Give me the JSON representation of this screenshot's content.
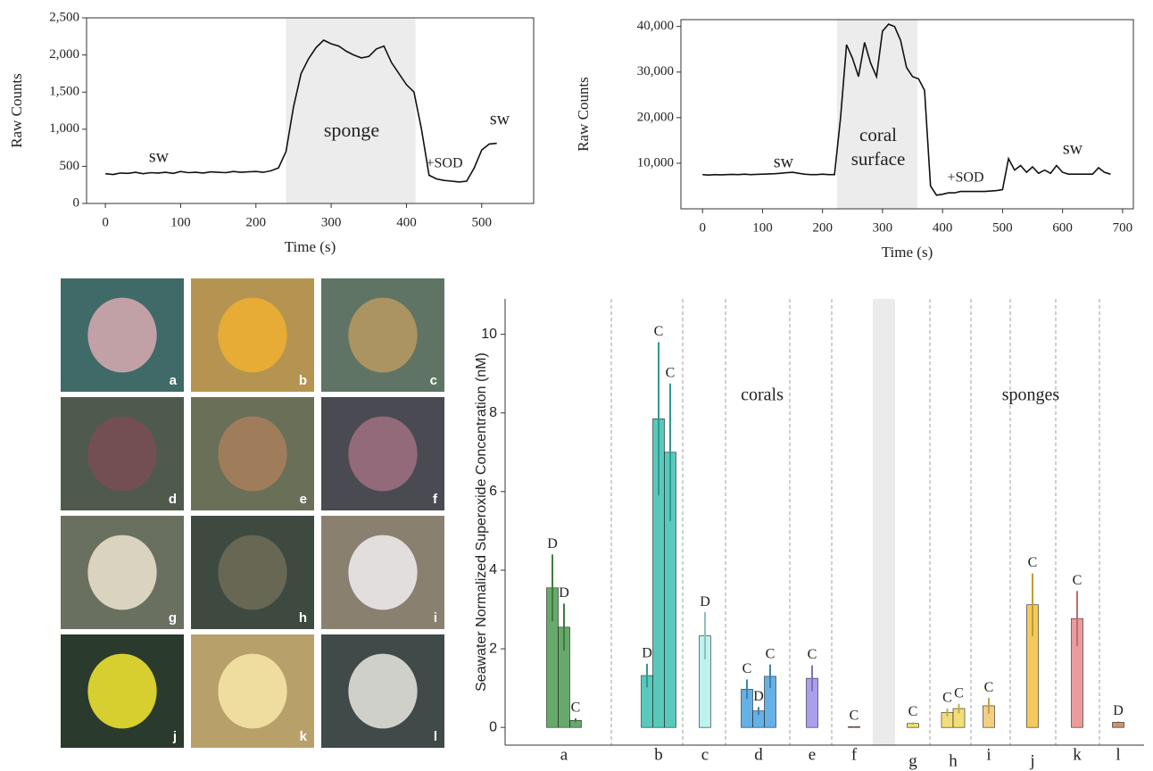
{
  "chart_data": [
    {
      "type": "line",
      "ylabel": "Raw Counts",
      "xlabel": "Time (s)",
      "color": "#111111",
      "shade_color": "#ececec",
      "xlim": [
        -25,
        569
      ],
      "xticks": [
        0,
        100,
        200,
        300,
        400,
        500
      ],
      "ylim": [
        0,
        2500
      ],
      "yticks": [
        0,
        500,
        {
          "value": 1000,
          "label": "1,000"
        },
        {
          "value": 1500,
          "label": "1,500"
        },
        {
          "value": 2000,
          "label": "2,000"
        },
        {
          "value": 2500,
          "label": "2,500"
        }
      ],
      "shaded": [
        240,
        412
      ],
      "annotations": [
        "sw",
        "sponge",
        "+SOD",
        "sw"
      ],
      "x": [
        0,
        10,
        20,
        30,
        40,
        50,
        60,
        70,
        80,
        90,
        100,
        110,
        120,
        130,
        140,
        150,
        160,
        170,
        180,
        190,
        200,
        210,
        220,
        230,
        240,
        250,
        260,
        270,
        280,
        290,
        300,
        310,
        320,
        330,
        340,
        350,
        360,
        370,
        380,
        390,
        400,
        410,
        420,
        430,
        440,
        450,
        460,
        470,
        480,
        490,
        500,
        510,
        520
      ],
      "values": [
        400,
        390,
        410,
        405,
        420,
        400,
        415,
        410,
        420,
        405,
        430,
        415,
        420,
        410,
        425,
        420,
        415,
        430,
        420,
        425,
        430,
        420,
        440,
        480,
        700,
        1300,
        1750,
        1950,
        2100,
        2200,
        2150,
        2120,
        2050,
        2000,
        1960,
        1980,
        2080,
        2120,
        1900,
        1750,
        1600,
        1500,
        1000,
        380,
        330,
        310,
        300,
        290,
        300,
        480,
        720,
        800,
        810
      ]
    },
    {
      "type": "line",
      "ylabel": "Raw Counts",
      "xlabel": "Time (s)",
      "color": "#111111",
      "shade_color": "#ececec",
      "xlim": [
        -36,
        718
      ],
      "xticks": [
        0,
        100,
        200,
        300,
        400,
        500,
        600,
        700
      ],
      "ylim": [
        0,
        41500
      ],
      "yticks": [
        {
          "value": 10000,
          "label": "10,000"
        },
        {
          "value": 20000,
          "label": "20,000"
        },
        {
          "value": 30000,
          "label": "30,000"
        },
        {
          "value": 40000,
          "label": "40,000"
        }
      ],
      "shaded": [
        224,
        358
      ],
      "annotations": [
        "sw",
        "coral",
        "surface",
        "+SOD",
        "sw"
      ],
      "x": [
        0,
        10,
        20,
        30,
        40,
        50,
        60,
        70,
        80,
        90,
        100,
        110,
        120,
        130,
        140,
        150,
        160,
        170,
        180,
        190,
        200,
        210,
        220,
        230,
        240,
        250,
        260,
        270,
        280,
        290,
        300,
        310,
        320,
        330,
        340,
        350,
        360,
        370,
        380,
        390,
        400,
        410,
        420,
        430,
        440,
        450,
        460,
        470,
        480,
        490,
        500,
        510,
        520,
        530,
        540,
        550,
        560,
        570,
        580,
        590,
        600,
        610,
        620,
        630,
        640,
        650,
        660,
        670,
        680
      ],
      "values": [
        7500,
        7400,
        7500,
        7450,
        7500,
        7550,
        7500,
        7600,
        7500,
        7550,
        7600,
        7650,
        7700,
        7800,
        7900,
        8000,
        7800,
        7600,
        7500,
        7500,
        7600,
        7500,
        7500,
        20000,
        36000,
        33000,
        29000,
        36500,
        32000,
        29000,
        39000,
        40500,
        40000,
        37000,
        31000,
        29000,
        28500,
        26000,
        5000,
        3000,
        3200,
        3500,
        3500,
        3800,
        3800,
        3800,
        3800,
        3800,
        3900,
        4000,
        4200,
        11000,
        8500,
        9500,
        8000,
        9200,
        7800,
        8500,
        7800,
        9500,
        8000,
        7600,
        7600,
        7600,
        7600,
        7600,
        9000,
        8000,
        7600
      ]
    },
    {
      "type": "bar",
      "ylabel": "Seawater Normalized Superoxide Concentration (nM)",
      "ylim": [
        -0.45,
        10.9
      ],
      "yticks": [
        0,
        2,
        4,
        6,
        8,
        10
      ],
      "annotations": [
        "corals",
        "sponges"
      ],
      "groups": [
        {
          "label": "a",
          "color": "#4c9a50",
          "values": [
            3.55,
            2.55,
            0.18
          ],
          "errors": [
            0.85,
            0.6,
            0.05
          ],
          "letters": [
            "D",
            "D",
            "C"
          ]
        },
        {
          "label": "b",
          "color": "#3cbfb0",
          "values": [
            1.32,
            7.85,
            7.0
          ],
          "errors": [
            0.3,
            1.95,
            1.75
          ],
          "letters": [
            "D",
            "C",
            "C"
          ]
        },
        {
          "label": "c",
          "color": "#b2f0ec",
          "values": [
            2.33
          ],
          "errors": [
            0.6
          ],
          "letters": [
            "D"
          ]
        },
        {
          "label": "d",
          "color": "#4aa3e0",
          "values": [
            0.97,
            0.42,
            1.3
          ],
          "errors": [
            0.25,
            0.1,
            0.3
          ],
          "letters": [
            "C",
            "D",
            "C"
          ]
        },
        {
          "label": "e",
          "color": "#9a8ee8",
          "values": [
            1.25
          ],
          "errors": [
            0.33
          ],
          "letters": [
            "C"
          ]
        },
        {
          "label": "f",
          "color": "#c08060",
          "values": [
            0.02
          ],
          "errors": [
            0.01
          ],
          "letters": [
            "C"
          ]
        },
        {
          "label": "g",
          "color": "#e8dc60",
          "values": [
            0.1
          ],
          "errors": [
            0.03
          ],
          "letters": [
            "C"
          ]
        },
        {
          "label": "h",
          "color": "#f0d860",
          "values": [
            0.38,
            0.48
          ],
          "errors": [
            0.1,
            0.12
          ],
          "letters": [
            "C",
            "C"
          ]
        },
        {
          "label": "i",
          "color": "#f0c868",
          "values": [
            0.55
          ],
          "errors": [
            0.2
          ],
          "letters": [
            "C"
          ]
        },
        {
          "label": "j",
          "color": "#f5c040",
          "values": [
            3.12
          ],
          "errors": [
            0.8
          ],
          "letters": [
            "C"
          ]
        },
        {
          "label": "k",
          "color": "#e88a8a",
          "values": [
            2.77
          ],
          "errors": [
            0.7
          ],
          "letters": [
            "C"
          ]
        },
        {
          "label": "l",
          "color": "#c08060",
          "values": [
            0.13
          ],
          "errors": [
            0.02
          ],
          "letters": [
            "D"
          ]
        }
      ]
    }
  ],
  "photos": {
    "labels": [
      "a",
      "b",
      "c",
      "d",
      "e",
      "f",
      "g",
      "h",
      "i",
      "j",
      "k",
      "l"
    ]
  }
}
